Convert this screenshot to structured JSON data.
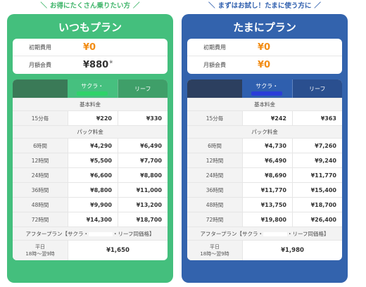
{
  "plans": [
    {
      "tagline": "お得にたくさん乗りたい方",
      "title": "いつもプラン",
      "initial_fee_label": "初期費用",
      "initial_fee_value": "¥0",
      "monthly_fee_label": "月額会費",
      "monthly_fee_value": "¥880",
      "monthly_fee_note": "※",
      "col_sakura": "サクラ・",
      "col_reef": "リーフ",
      "basic_label": "基本料金",
      "basic_rows": [
        {
          "label": "15分毎",
          "sakura": "¥220",
          "reef": "¥330"
        }
      ],
      "pack_label": "パック料金",
      "pack_rows": [
        {
          "label": "6時間",
          "sakura": "¥4,290",
          "reef": "¥6,490"
        },
        {
          "label": "12時間",
          "sakura": "¥5,500",
          "reef": "¥7,700"
        },
        {
          "label": "24時間",
          "sakura": "¥6,600",
          "reef": "¥8,800"
        },
        {
          "label": "36時間",
          "sakura": "¥8,800",
          "reef": "¥11,000"
        },
        {
          "label": "48時間",
          "sakura": "¥9,900",
          "reef": "¥13,200"
        },
        {
          "label": "72時間",
          "sakura": "¥14,300",
          "reef": "¥18,700"
        }
      ],
      "after_prefix": "アフタープラン【サクラ・",
      "after_suffix": "・リーフ同価格】",
      "late_label_1": "平日",
      "late_label_2": "18時～翌9時",
      "late_value": "¥1,650"
    },
    {
      "tagline": "まずはお試し！たまに使う方に",
      "title": "たまにプラン",
      "initial_fee_label": "初期費用",
      "initial_fee_value": "¥0",
      "monthly_fee_label": "月額会費",
      "monthly_fee_value": "¥0",
      "monthly_fee_note": "",
      "col_sakura": "サクラ・",
      "col_reef": "リーフ",
      "basic_label": "基本料金",
      "basic_rows": [
        {
          "label": "15分毎",
          "sakura": "¥242",
          "reef": "¥363"
        }
      ],
      "pack_label": "パック料金",
      "pack_rows": [
        {
          "label": "6時間",
          "sakura": "¥4,730",
          "reef": "¥7,260"
        },
        {
          "label": "12時間",
          "sakura": "¥6,490",
          "reef": "¥9,240"
        },
        {
          "label": "24時間",
          "sakura": "¥8,690",
          "reef": "¥11,770"
        },
        {
          "label": "36時間",
          "sakura": "¥11,770",
          "reef": "¥15,400"
        },
        {
          "label": "48時間",
          "sakura": "¥13,750",
          "reef": "¥18,700"
        },
        {
          "label": "72時間",
          "sakura": "¥19,800",
          "reef": "¥26,400"
        }
      ],
      "after_prefix": "アフタープラン【サクラ・",
      "after_suffix": "・リーフ同価格】",
      "late_label_1": "平日",
      "late_label_2": "18時～翌9時",
      "late_value": "¥1,980"
    }
  ],
  "colors": {
    "itsumo_green": "#44bf7d",
    "tamani_blue": "#3363ad",
    "price_orange": "#f28c14"
  }
}
